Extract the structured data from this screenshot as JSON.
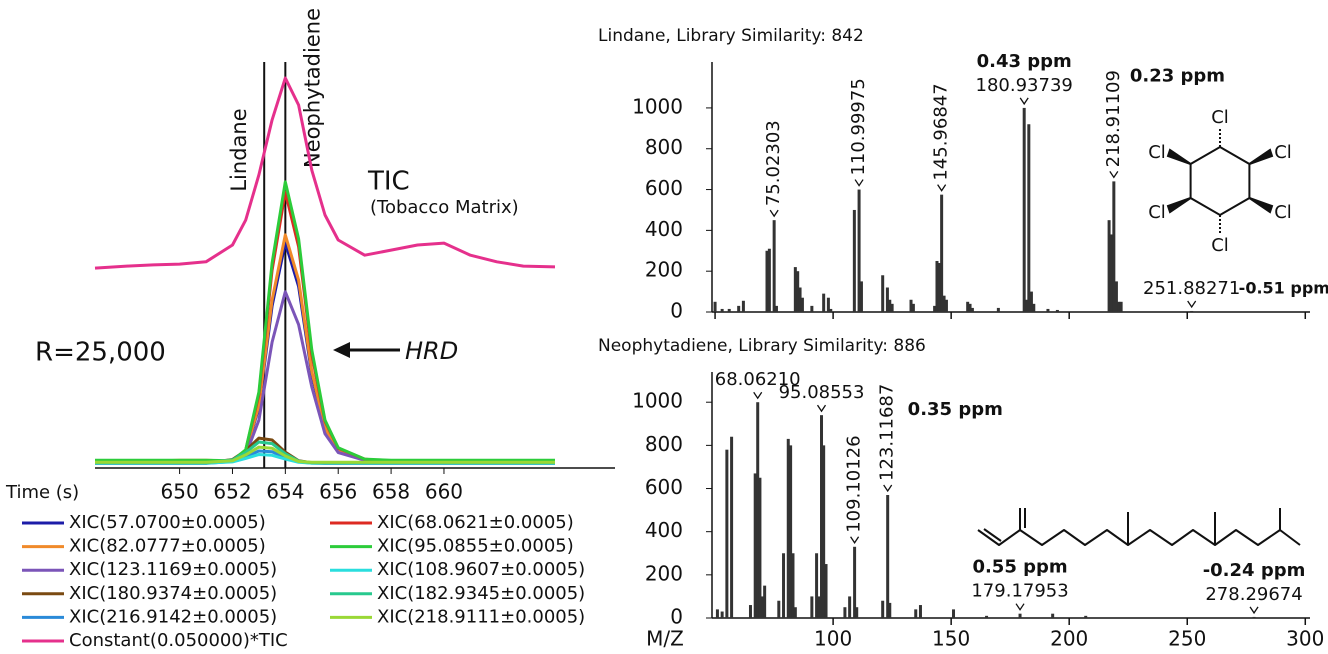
{
  "chart_data": [
    {
      "type": "line",
      "xlabel": "Time (s)",
      "x": [
        646.8,
        648,
        649,
        650,
        651,
        652,
        652.5,
        653,
        653.5,
        654,
        654.5,
        655,
        655.5,
        656,
        657,
        658,
        659,
        660,
        661,
        662,
        663,
        664.2
      ],
      "xlim": [
        646.8,
        664.2
      ],
      "xticks": [
        650,
        652,
        654,
        656,
        658,
        660
      ],
      "ylim": [
        0,
        100
      ],
      "series": [
        {
          "name": "XIC(57.0700±0.0005)",
          "color": "#1c1ca8",
          "values": [
            0.8,
            0.8,
            0.8,
            0.8,
            0.8,
            1.0,
            3.3,
            14.8,
            40.8,
            57,
            45.8,
            23.3,
            9.2,
            3.6,
            1.4,
            0.8,
            0.8,
            0.8,
            0.8,
            0.8,
            0.8,
            0.8
          ]
        },
        {
          "name": "XIC(82.0777±0.0005)",
          "color": "#f08a2a",
          "values": [
            1.0,
            1.0,
            1.0,
            1.2,
            1.2,
            1.0,
            3.4,
            15.3,
            42.3,
            59,
            47.4,
            24,
            9.5,
            3.7,
            1.4,
            1.0,
            1.0,
            1.0,
            1.0,
            1.0,
            1.0,
            1.0
          ]
        },
        {
          "name": "XIC(123.1169±0.0005)",
          "color": "#7b55b8",
          "values": [
            0.6,
            0.6,
            0.6,
            0.6,
            0.6,
            0.9,
            2.6,
            11.5,
            31.5,
            44.4,
            36,
            20,
            8,
            3.2,
            1.2,
            0.6,
            0.6,
            0.6,
            0.6,
            0.6,
            0.6,
            0.6
          ]
        },
        {
          "name": "XIC(180.9374±0.0005)",
          "color": "#7a4a12",
          "values": [
            0.5,
            0.5,
            0.5,
            0.5,
            0.5,
            1.4,
            3.7,
            6.9,
            6.4,
            3.3,
            1.1,
            0.6,
            0.5,
            0.5,
            0.5,
            0.5,
            0.5,
            0.5,
            0.5,
            0.5,
            0.5,
            0.5
          ]
        },
        {
          "name": "XIC(216.9142±0.0005)",
          "color": "#2a8ad8",
          "values": [
            0.4,
            0.4,
            0.4,
            0.4,
            0.4,
            0.9,
            2.1,
            3.6,
            3.4,
            1.9,
            0.8,
            0.5,
            0.4,
            0.4,
            0.4,
            0.4,
            0.4,
            0.4,
            0.4,
            0.4,
            0.4,
            0.4
          ]
        },
        {
          "name": "Constant(0.050000)*TIC",
          "color": "#e5308c",
          "values": [
            50.5,
            51.0,
            51.3,
            51.5,
            52.1,
            56.4,
            62.8,
            74.4,
            88.5,
            99.2,
            92.3,
            75.6,
            64.1,
            57.7,
            53.8,
            55.1,
            56.4,
            56.9,
            53.8,
            52.1,
            51.0,
            50.8
          ]
        },
        {
          "name": "XIC(68.0621±0.0005)",
          "color": "#dd2a22",
          "values": [
            0.8,
            0.8,
            0.8,
            0.8,
            0.8,
            1.1,
            3.8,
            18,
            50,
            70,
            56,
            28.4,
            11.2,
            4.3,
            1.5,
            0.8,
            0.8,
            0.8,
            0.8,
            0.8,
            0.8,
            0.8
          ]
        },
        {
          "name": "XIC(95.0855±0.0005)",
          "color": "#2ccc3a",
          "values": [
            1.2,
            1.2,
            1.2,
            1.2,
            1.2,
            1.1,
            3.9,
            18.7,
            51.8,
            72.6,
            58,
            29.5,
            11.5,
            4.4,
            1.5,
            1.2,
            1.2,
            1.2,
            1.2,
            1.2,
            1.2,
            1.2
          ]
        },
        {
          "name": "XIC(108.9607±0.0005)",
          "color": "#2adede",
          "values": [
            0.5,
            0.5,
            0.5,
            0.5,
            0.5,
            0.8,
            1.7,
            2.7,
            2.5,
            1.5,
            0.7,
            0.5,
            0.5,
            0.5,
            0.5,
            0.5,
            0.5,
            0.5,
            0.5,
            0.5,
            0.5,
            0.5
          ]
        },
        {
          "name": "XIC(182.9345±0.0005)",
          "color": "#28c98e",
          "values": [
            0.6,
            0.6,
            0.6,
            0.6,
            0.6,
            1.3,
            3.2,
            5.9,
            5.5,
            2.9,
            1.0,
            0.6,
            0.6,
            0.6,
            0.6,
            0.6,
            0.6,
            0.6,
            0.6,
            0.6,
            0.6,
            0.6
          ]
        },
        {
          "name": "XIC(218.9111±0.0005)",
          "color": "#9ad836",
          "values": [
            0.7,
            0.7,
            0.7,
            0.7,
            0.7,
            1.1,
            2.6,
            4.6,
            4.3,
            2.3,
            0.9,
            0.7,
            0.7,
            0.7,
            0.7,
            0.7,
            0.7,
            0.7,
            0.7,
            0.7,
            0.7,
            0.7
          ]
        }
      ],
      "markers": [
        {
          "label": "Lindane",
          "x": 653.2
        },
        {
          "label": "Neophytadiene",
          "x": 654
        }
      ],
      "annotations": [
        "TIC",
        "(Tobacco Matrix)",
        "R=25,000",
        "HRD"
      ]
    },
    {
      "type": "spectrum",
      "title": "Lindane, Library Similarity: 842",
      "x": [
        50,
        53,
        56,
        60,
        62,
        72,
        73,
        75.02303,
        76,
        84,
        85,
        86,
        87,
        91,
        96,
        98,
        99,
        109,
        110.99975,
        112,
        121,
        123,
        124,
        125,
        133,
        134,
        143,
        144,
        145,
        145.96847,
        147,
        148,
        157,
        158,
        159,
        170,
        180.93739,
        182,
        182.9,
        184,
        185,
        191,
        195,
        216.9,
        217.9,
        218.91109,
        220,
        221,
        222,
        251.88271
      ],
      "values": [
        50,
        15,
        15,
        30,
        55,
        300,
        310,
        450,
        30,
        220,
        200,
        120,
        70,
        30,
        90,
        70,
        15,
        500,
        600,
        150,
        180,
        120,
        60,
        40,
        60,
        40,
        30,
        250,
        240,
        575,
        80,
        60,
        50,
        40,
        20,
        20,
        1000,
        60,
        920,
        100,
        40,
        15,
        10,
        450,
        380,
        640,
        150,
        50,
        50,
        5
      ],
      "peak_labels": [
        null,
        null,
        null,
        null,
        null,
        null,
        null,
        "75.02303",
        null,
        null,
        null,
        null,
        null,
        null,
        null,
        null,
        null,
        null,
        "110.99975",
        null,
        null,
        null,
        null,
        null,
        null,
        null,
        null,
        null,
        null,
        "145.96847",
        null,
        null,
        null,
        null,
        null,
        null,
        "180.93739",
        null,
        null,
        null,
        null,
        null,
        null,
        null,
        null,
        "218.91109",
        null,
        null,
        null,
        "251.88271"
      ],
      "ppm_labels": [
        null,
        null,
        null,
        null,
        null,
        null,
        null,
        null,
        null,
        null,
        null,
        null,
        null,
        null,
        null,
        null,
        null,
        null,
        null,
        null,
        null,
        null,
        null,
        null,
        null,
        null,
        null,
        null,
        null,
        null,
        null,
        null,
        null,
        null,
        null,
        null,
        "0.43 ppm",
        null,
        null,
        null,
        null,
        null,
        null,
        null,
        null,
        "0.23 ppm",
        null,
        null,
        null,
        "-0.51 ppm"
      ],
      "xlim": [
        48.7,
        302
      ],
      "xticks": [
        50,
        100,
        150,
        200,
        250,
        300
      ],
      "show_xtick_labels": false,
      "ylim": [
        0,
        1225
      ],
      "yticks": [
        0,
        200,
        400,
        600,
        800,
        1000
      ],
      "color": "#333333",
      "structure_atoms": [
        "Cl",
        "Cl",
        "Cl",
        "Cl",
        "Cl",
        "Cl"
      ]
    },
    {
      "type": "spectrum",
      "title": "Neophytadiene, Library Similarity: 886",
      "xlabel": "M/Z",
      "x": [
        51,
        53,
        55,
        57,
        65,
        67,
        68.0621,
        69,
        70,
        71,
        77,
        79,
        81,
        82,
        83,
        84,
        91,
        93,
        94,
        95.08553,
        96,
        97,
        105,
        107,
        109.10126,
        110,
        121,
        123.11687,
        124,
        135,
        137,
        151,
        165,
        179.17953,
        193,
        207,
        278.29674
      ],
      "values": [
        40,
        30,
        780,
        840,
        60,
        670,
        1000,
        650,
        100,
        150,
        80,
        300,
        830,
        800,
        300,
        50,
        100,
        300,
        100,
        940,
        800,
        250,
        50,
        100,
        330,
        50,
        80,
        570,
        70,
        40,
        60,
        40,
        10,
        20,
        20,
        10,
        5
      ],
      "peak_labels": [
        null,
        null,
        null,
        null,
        null,
        null,
        "68.06210",
        null,
        null,
        null,
        null,
        null,
        null,
        null,
        null,
        null,
        null,
        null,
        null,
        "95.08553",
        null,
        null,
        null,
        null,
        "109.10126",
        null,
        null,
        "123.11687",
        null,
        null,
        null,
        null,
        null,
        "179.17953",
        null,
        null,
        "278.29674"
      ],
      "ppm_labels": [
        null,
        null,
        null,
        null,
        null,
        null,
        null,
        null,
        null,
        null,
        null,
        null,
        null,
        null,
        null,
        null,
        null,
        null,
        null,
        null,
        null,
        null,
        null,
        null,
        null,
        null,
        null,
        "0.35 ppm",
        null,
        null,
        null,
        null,
        null,
        "0.55 ppm",
        null,
        null,
        "-0.24 ppm"
      ],
      "xlim": [
        48.7,
        302
      ],
      "xticks": [
        100,
        150,
        200,
        250,
        300
      ],
      "show_xtick_labels": true,
      "ylim": [
        0,
        1140
      ],
      "yticks": [
        0,
        200,
        400,
        600,
        800,
        1000
      ],
      "color": "#333333"
    }
  ]
}
